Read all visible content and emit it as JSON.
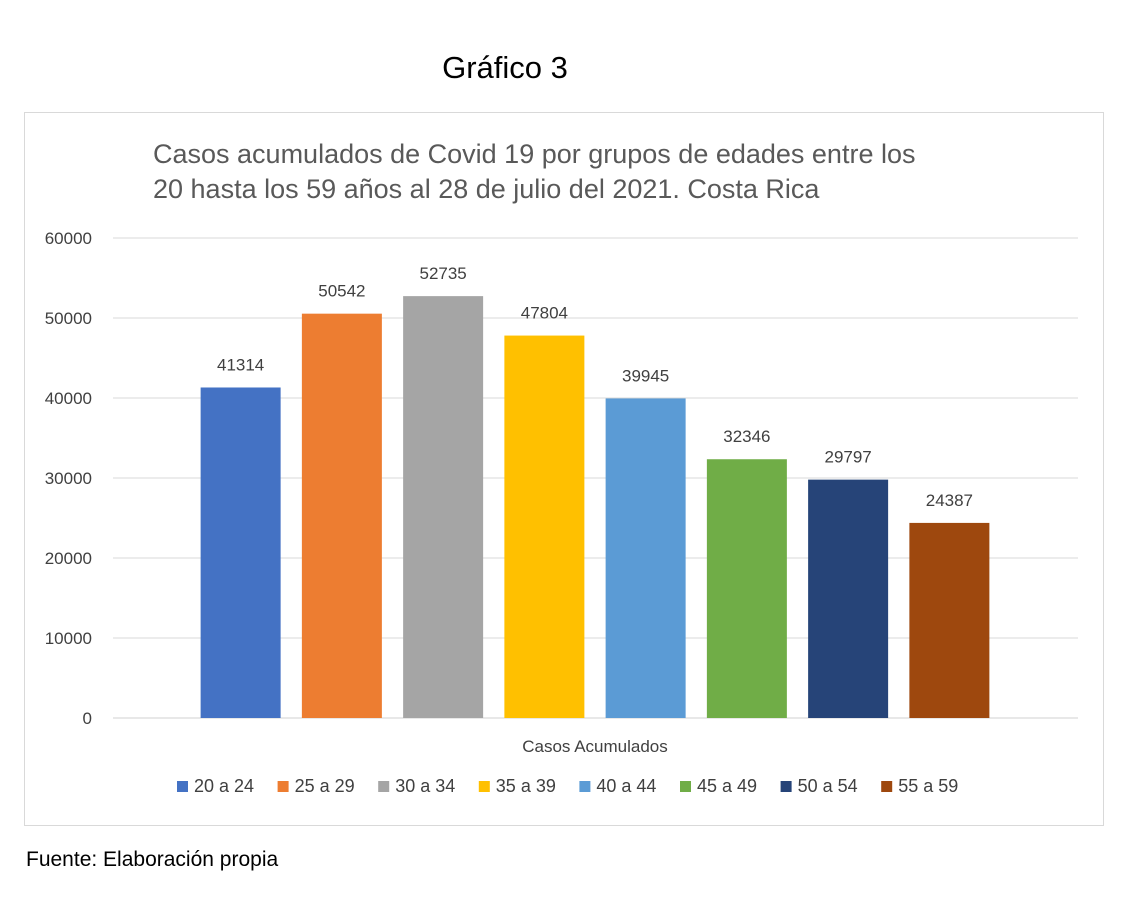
{
  "heading": "Gráfico 3",
  "source": "Fuente: Elaboración propia",
  "chart_data": {
    "type": "bar",
    "title_lines": [
      "Casos acumulados de Covid 19 por grupos de edades entre los",
      "20 hasta los 59 años al 28 de julio del 2021. Costa Rica"
    ],
    "xlabel": "Casos Acumulados",
    "ylabel": "",
    "ylim": [
      0,
      60000
    ],
    "yticks": [
      0,
      10000,
      20000,
      30000,
      40000,
      50000,
      60000
    ],
    "grid": true,
    "legend_position": "bottom",
    "series": [
      {
        "name": "20 a 24",
        "value": 41314,
        "color": "#4472c4"
      },
      {
        "name": "25 a 29",
        "value": 50542,
        "color": "#ed7d31"
      },
      {
        "name": "30 a 34",
        "value": 52735,
        "color": "#a5a5a5"
      },
      {
        "name": "35 a 39",
        "value": 47804,
        "color": "#ffc000"
      },
      {
        "name": "40 a 44",
        "value": 39945,
        "color": "#5b9bd5"
      },
      {
        "name": "45 a 49",
        "value": 32346,
        "color": "#70ad47"
      },
      {
        "name": "50 a 54",
        "value": 29797,
        "color": "#264478"
      },
      {
        "name": "55 a 59",
        "value": 24387,
        "color": "#9e480e"
      }
    ]
  }
}
